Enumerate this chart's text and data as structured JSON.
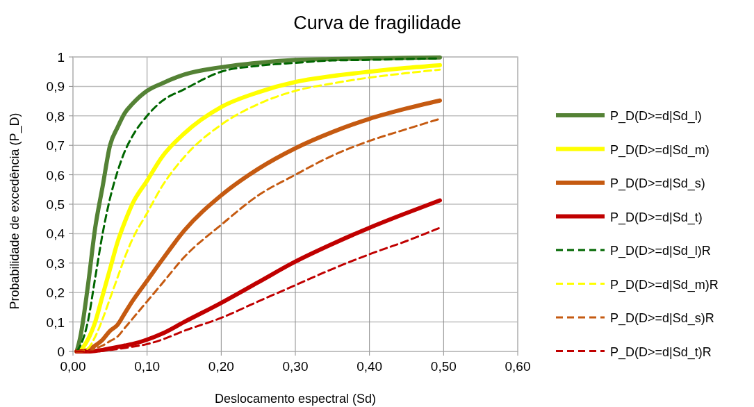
{
  "chart_data": {
    "type": "line",
    "title": "Curva de fragilidade",
    "xlabel": "Deslocamento espectral (Sd)",
    "ylabel": "Probabilidade de excedência (P_D)",
    "x": [
      0.005,
      0.01,
      0.02,
      0.03,
      0.04,
      0.05,
      0.06,
      0.07,
      0.08,
      0.1,
      0.12,
      0.15,
      0.2,
      0.25,
      0.3,
      0.35,
      0.4,
      0.45,
      0.495
    ],
    "series": [
      {
        "name": "P_D(D>=d|Sd_l)",
        "color": "#548235",
        "line_style": "solid",
        "values": [
          0,
          0.05,
          0.22,
          0.42,
          0.56,
          0.7,
          0.76,
          0.81,
          0.84,
          0.885,
          0.91,
          0.94,
          0.965,
          0.98,
          0.99,
          0.993,
          0.995,
          0.997,
          0.998
        ]
      },
      {
        "name": "P_D(D>=d|Sd_m)",
        "color": "#ffff00",
        "line_style": "solid",
        "values": [
          0,
          0.005,
          0.04,
          0.1,
          0.19,
          0.28,
          0.37,
          0.44,
          0.5,
          0.58,
          0.66,
          0.74,
          0.83,
          0.88,
          0.915,
          0.935,
          0.95,
          0.963,
          0.972
        ]
      },
      {
        "name": "P_D(D>=d|Sd_s)",
        "color": "#c55a11",
        "line_style": "solid",
        "values": [
          0,
          0,
          0.005,
          0.02,
          0.04,
          0.07,
          0.09,
          0.13,
          0.17,
          0.24,
          0.31,
          0.41,
          0.53,
          0.62,
          0.69,
          0.745,
          0.79,
          0.825,
          0.852
        ]
      },
      {
        "name": "P_D(D>=d|Sd_t)",
        "color": "#c00000",
        "line_style": "solid",
        "values": [
          0,
          0,
          0,
          0.002,
          0.005,
          0.01,
          0.015,
          0.02,
          0.025,
          0.04,
          0.06,
          0.1,
          0.165,
          0.235,
          0.305,
          0.365,
          0.42,
          0.47,
          0.513
        ]
      },
      {
        "name": "P_D(D>=d|Sd_l)R",
        "color": "#006600",
        "line_style": "dashed",
        "values": [
          0,
          0.02,
          0.1,
          0.25,
          0.4,
          0.52,
          0.61,
          0.68,
          0.73,
          0.8,
          0.85,
          0.89,
          0.95,
          0.97,
          0.98,
          0.988,
          0.99,
          0.993,
          0.995
        ]
      },
      {
        "name": "P_D(D>=d|Sd_m)R",
        "color": "#ffff00",
        "line_style": "dashed",
        "values": [
          0,
          0,
          0.01,
          0.05,
          0.11,
          0.18,
          0.25,
          0.32,
          0.38,
          0.47,
          0.56,
          0.66,
          0.77,
          0.84,
          0.885,
          0.91,
          0.93,
          0.945,
          0.957
        ]
      },
      {
        "name": "P_D(D>=d|Sd_s)R",
        "color": "#c55a11",
        "line_style": "dashed",
        "values": [
          0,
          0,
          0,
          0.01,
          0.02,
          0.035,
          0.05,
          0.08,
          0.11,
          0.17,
          0.23,
          0.32,
          0.43,
          0.53,
          0.6,
          0.665,
          0.715,
          0.755,
          0.79
        ]
      },
      {
        "name": "P_D(D>=d|Sd_t)R",
        "color": "#c00000",
        "line_style": "dashed",
        "values": [
          0,
          0,
          0,
          0,
          0.002,
          0.005,
          0.008,
          0.012,
          0.016,
          0.025,
          0.04,
          0.07,
          0.114,
          0.17,
          0.225,
          0.28,
          0.33,
          0.375,
          0.42
        ]
      }
    ],
    "xlim": [
      0,
      0.6
    ],
    "xticks": [
      {
        "value": 0,
        "label": "0,00"
      },
      {
        "value": 0.1,
        "label": "0,10"
      },
      {
        "value": 0.2,
        "label": "0,20"
      },
      {
        "value": 0.3,
        "label": "0,30"
      },
      {
        "value": 0.4,
        "label": "0,40"
      },
      {
        "value": 0.5,
        "label": "0,50"
      },
      {
        "value": 0.6,
        "label": "0,60"
      }
    ],
    "ylim": [
      0,
      1
    ],
    "yticks": [
      0,
      {
        "value": 0.1,
        "label": "0,1"
      },
      {
        "value": 0.2,
        "label": "0,2"
      },
      {
        "value": 0.3,
        "label": "0,3"
      },
      {
        "value": 0.4,
        "label": "0,4"
      },
      {
        "value": 0.5,
        "label": "0,5"
      },
      {
        "value": 0.6,
        "label": "0,6"
      },
      {
        "value": 0.7,
        "label": "0,7"
      },
      {
        "value": 0.8,
        "label": "0,8"
      },
      {
        "value": 0.9,
        "label": "0,9"
      },
      1
    ],
    "grid": true,
    "legend": "right"
  }
}
